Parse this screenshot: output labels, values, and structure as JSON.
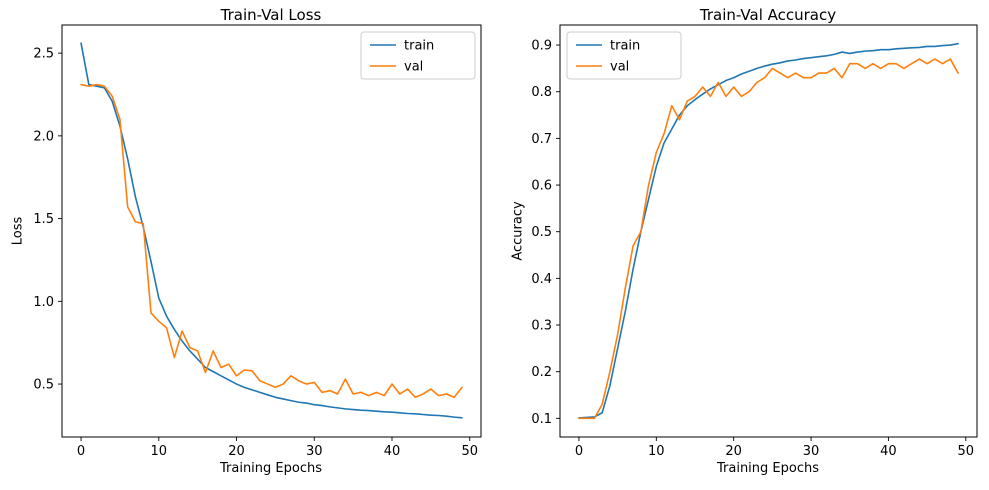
{
  "figure": {
    "background": "#ffffff"
  },
  "colors": {
    "train": "#1f77b4",
    "val": "#ff7f0e",
    "axis": "#000000",
    "legend_border": "#cccccc"
  },
  "chart_data": [
    {
      "type": "line",
      "title": "Train-Val Loss",
      "xlabel": "Training Epochs",
      "ylabel": "Loss",
      "xlim": [
        -2.45,
        51.45
      ],
      "ylim": [
        0.18,
        2.67
      ],
      "grid": false,
      "legend_position": "top-right",
      "xticks": {
        "values": [
          0,
          10,
          20,
          30,
          40,
          50
        ],
        "labels": [
          "0",
          "10",
          "20",
          "30",
          "40",
          "50"
        ]
      },
      "yticks": {
        "values": [
          0.5,
          1.0,
          1.5,
          2.0,
          2.5
        ],
        "labels": [
          "0.5",
          "1.0",
          "1.5",
          "2.0",
          "2.5"
        ]
      },
      "x": [
        0,
        1,
        2,
        3,
        4,
        5,
        6,
        7,
        8,
        9,
        10,
        11,
        12,
        13,
        14,
        15,
        16,
        17,
        18,
        19,
        20,
        21,
        22,
        23,
        24,
        25,
        26,
        27,
        28,
        29,
        30,
        31,
        32,
        33,
        34,
        35,
        36,
        37,
        38,
        39,
        40,
        41,
        42,
        43,
        44,
        45,
        46,
        47,
        48,
        49
      ],
      "series": [
        {
          "name": "train",
          "color": "#1f77b4",
          "values": [
            2.56,
            2.31,
            2.3,
            2.29,
            2.21,
            2.06,
            1.86,
            1.63,
            1.45,
            1.24,
            1.02,
            0.91,
            0.83,
            0.76,
            0.7,
            0.65,
            0.6,
            0.575,
            0.55,
            0.525,
            0.5,
            0.48,
            0.465,
            0.45,
            0.435,
            0.42,
            0.41,
            0.4,
            0.39,
            0.385,
            0.375,
            0.37,
            0.362,
            0.356,
            0.35,
            0.346,
            0.342,
            0.34,
            0.336,
            0.332,
            0.33,
            0.326,
            0.322,
            0.32,
            0.316,
            0.312,
            0.31,
            0.306,
            0.3,
            0.296
          ]
        },
        {
          "name": "val",
          "color": "#ff7f0e",
          "values": [
            2.31,
            2.3,
            2.31,
            2.3,
            2.24,
            2.1,
            1.57,
            1.48,
            1.47,
            0.93,
            0.88,
            0.84,
            0.66,
            0.82,
            0.72,
            0.7,
            0.57,
            0.7,
            0.6,
            0.62,
            0.55,
            0.585,
            0.58,
            0.52,
            0.5,
            0.48,
            0.5,
            0.55,
            0.52,
            0.5,
            0.51,
            0.45,
            0.46,
            0.44,
            0.53,
            0.44,
            0.45,
            0.43,
            0.45,
            0.43,
            0.5,
            0.44,
            0.47,
            0.42,
            0.44,
            0.47,
            0.43,
            0.44,
            0.42,
            0.48
          ]
        }
      ]
    },
    {
      "type": "line",
      "title": "Train-Val Accuracy",
      "xlabel": "Training Epochs",
      "ylabel": "Accuracy",
      "xlim": [
        -2.45,
        51.45
      ],
      "ylim": [
        0.06,
        0.943
      ],
      "grid": false,
      "legend_position": "top-left",
      "xticks": {
        "values": [
          0,
          10,
          20,
          30,
          40,
          50
        ],
        "labels": [
          "0",
          "10",
          "20",
          "30",
          "40",
          "50"
        ]
      },
      "yticks": {
        "values": [
          0.1,
          0.2,
          0.3,
          0.4,
          0.5,
          0.6,
          0.7,
          0.8,
          0.9
        ],
        "labels": [
          "0.1",
          "0.2",
          "0.3",
          "0.4",
          "0.5",
          "0.6",
          "0.7",
          "0.8",
          "0.9"
        ]
      },
      "x": [
        0,
        1,
        2,
        3,
        4,
        5,
        6,
        7,
        8,
        9,
        10,
        11,
        12,
        13,
        14,
        15,
        16,
        17,
        18,
        19,
        20,
        21,
        22,
        23,
        24,
        25,
        26,
        27,
        28,
        29,
        30,
        31,
        32,
        33,
        34,
        35,
        36,
        37,
        38,
        39,
        40,
        41,
        42,
        43,
        44,
        45,
        46,
        47,
        48,
        49
      ],
      "series": [
        {
          "name": "train",
          "color": "#1f77b4",
          "values": [
            0.101,
            0.102,
            0.103,
            0.112,
            0.17,
            0.25,
            0.33,
            0.42,
            0.5,
            0.57,
            0.64,
            0.69,
            0.72,
            0.75,
            0.77,
            0.783,
            0.795,
            0.806,
            0.815,
            0.824,
            0.83,
            0.838,
            0.844,
            0.85,
            0.855,
            0.859,
            0.862,
            0.866,
            0.868,
            0.871,
            0.873,
            0.875,
            0.877,
            0.88,
            0.885,
            0.882,
            0.885,
            0.887,
            0.888,
            0.89,
            0.89,
            0.892,
            0.893,
            0.894,
            0.895,
            0.897,
            0.897,
            0.899,
            0.9,
            0.903
          ]
        },
        {
          "name": "val",
          "color": "#ff7f0e",
          "values": [
            0.1,
            0.1,
            0.1,
            0.13,
            0.2,
            0.28,
            0.38,
            0.47,
            0.5,
            0.6,
            0.67,
            0.71,
            0.77,
            0.74,
            0.78,
            0.79,
            0.81,
            0.79,
            0.82,
            0.79,
            0.81,
            0.79,
            0.8,
            0.82,
            0.83,
            0.85,
            0.84,
            0.83,
            0.84,
            0.83,
            0.83,
            0.84,
            0.84,
            0.85,
            0.83,
            0.86,
            0.86,
            0.85,
            0.86,
            0.85,
            0.86,
            0.86,
            0.85,
            0.86,
            0.87,
            0.86,
            0.87,
            0.86,
            0.87,
            0.84
          ]
        }
      ]
    }
  ]
}
